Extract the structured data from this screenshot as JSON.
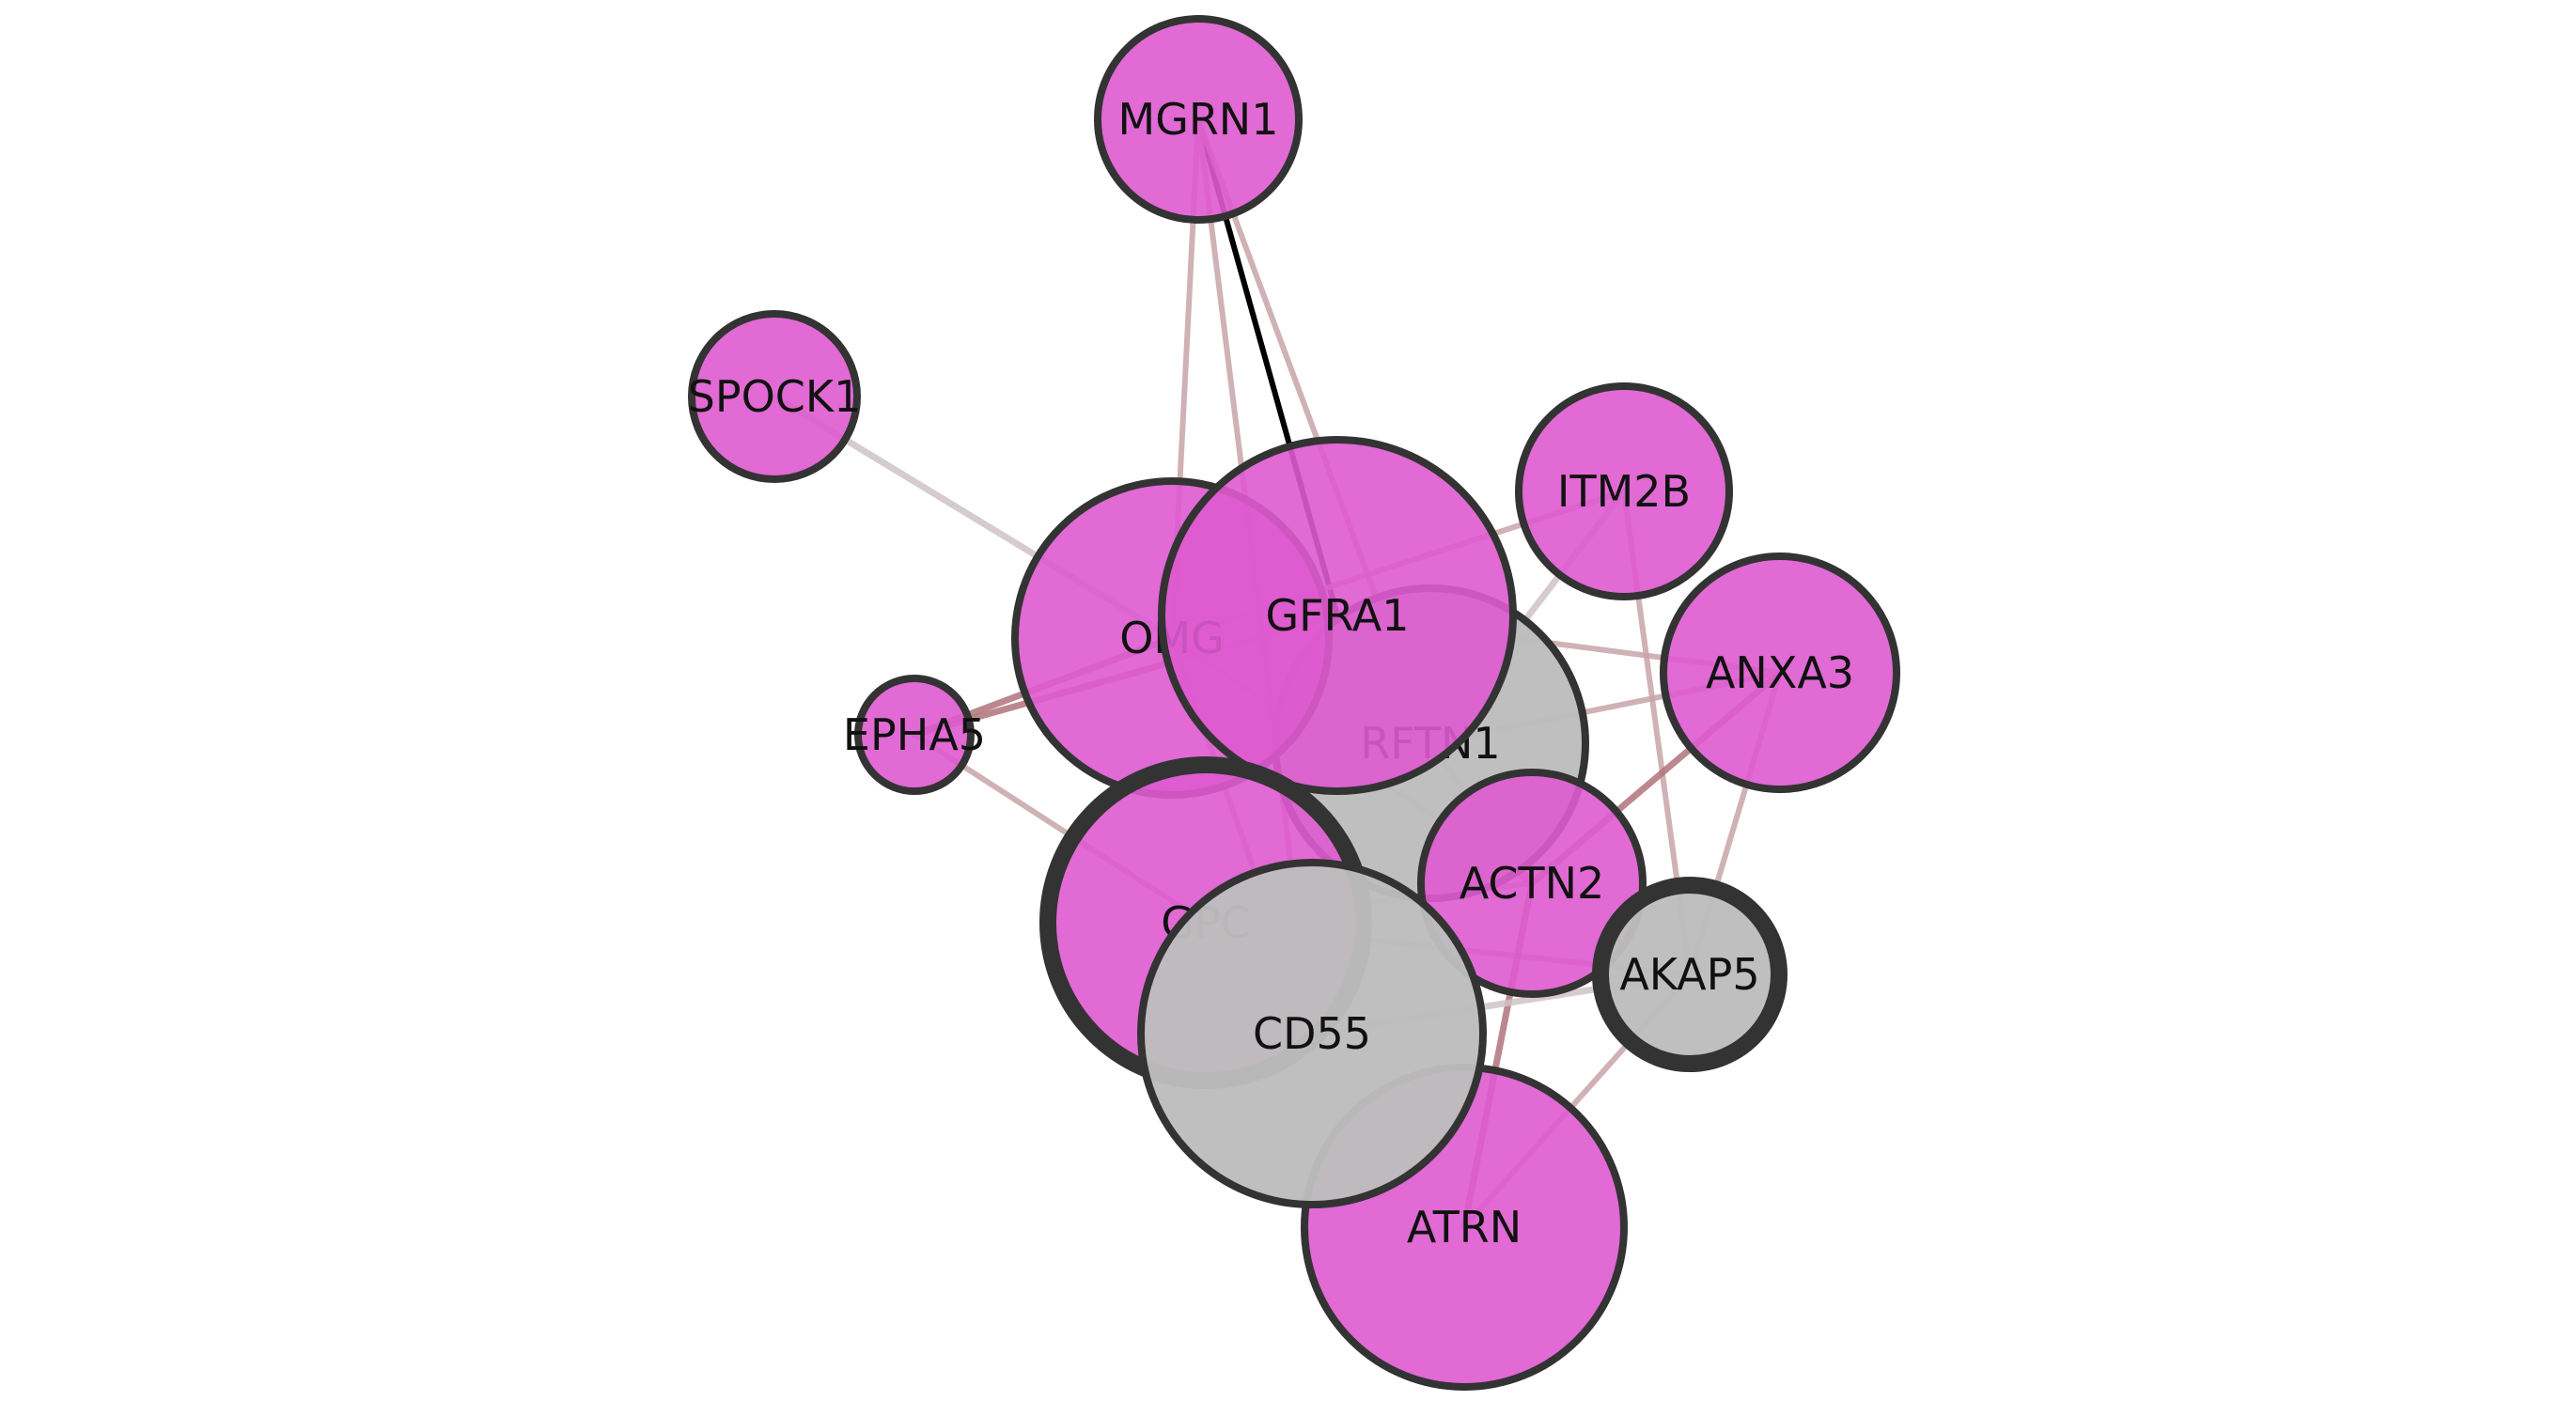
{
  "network": {
    "colors": {
      "magenta_node": "#de5acf",
      "grey_node": "#bdbdbd",
      "node_outline": "#333333",
      "edge_weak": "#cfc3c6",
      "edge_medium": "#c8a3a8",
      "edge_strong": "#b0737b",
      "edge_strongest": "#000000"
    },
    "nodes": [
      {
        "id": "MGRN1",
        "label": "MGRN1",
        "kind": "magenta"
      },
      {
        "id": "SPOCK1",
        "label": "SPOCK1",
        "kind": "magenta"
      },
      {
        "id": "EPHA5",
        "label": "EPHA5",
        "kind": "magenta"
      },
      {
        "id": "ITM2B",
        "label": "ITM2B",
        "kind": "magenta"
      },
      {
        "id": "ANXA3",
        "label": "ANXA3",
        "kind": "magenta"
      },
      {
        "id": "RFTN1",
        "label": "RFTN1",
        "kind": "grey"
      },
      {
        "id": "OMG",
        "label": "OMG",
        "kind": "magenta"
      },
      {
        "id": "GFRA1",
        "label": "GFRA1",
        "kind": "magenta"
      },
      {
        "id": "GPC",
        "label": "GPC",
        "kind": "magenta",
        "thick_outline": true
      },
      {
        "id": "ACTN2",
        "label": "ACTN2",
        "kind": "magenta"
      },
      {
        "id": "AKAP5",
        "label": "AKAP5",
        "kind": "grey",
        "thick_outline": true
      },
      {
        "id": "ATRN",
        "label": "ATRN",
        "kind": "magenta"
      },
      {
        "id": "CD55",
        "label": "CD55",
        "kind": "grey"
      }
    ],
    "edges": [
      {
        "source": "MGRN1",
        "target": "GFRA1",
        "strength": "strongest"
      },
      {
        "source": "MGRN1",
        "target": "OMG",
        "strength": "medium"
      },
      {
        "source": "MGRN1",
        "target": "RFTN1",
        "strength": "medium"
      },
      {
        "source": "MGRN1",
        "target": "CD55",
        "strength": "medium"
      },
      {
        "source": "SPOCK1",
        "target": "OMG",
        "strength": "weak"
      },
      {
        "source": "EPHA5",
        "target": "GFRA1",
        "strength": "strong"
      },
      {
        "source": "EPHA5",
        "target": "OMG",
        "strength": "strong"
      },
      {
        "source": "EPHA5",
        "target": "GPC",
        "strength": "medium"
      },
      {
        "source": "ITM2B",
        "target": "OMG",
        "strength": "medium"
      },
      {
        "source": "ITM2B",
        "target": "RFTN1",
        "strength": "weak"
      },
      {
        "source": "ITM2B",
        "target": "AKAP5",
        "strength": "medium"
      },
      {
        "source": "ANXA3",
        "target": "RFTN1",
        "strength": "medium"
      },
      {
        "source": "ANXA3",
        "target": "GFRA1",
        "strength": "medium"
      },
      {
        "source": "ANXA3",
        "target": "ACTN2",
        "strength": "strong"
      },
      {
        "source": "ANXA3",
        "target": "AKAP5",
        "strength": "medium"
      },
      {
        "source": "OMG",
        "target": "CD55",
        "strength": "medium"
      },
      {
        "source": "OMG",
        "target": "ACTN2",
        "strength": "medium"
      },
      {
        "source": "GFRA1",
        "target": "ACTN2",
        "strength": "medium"
      },
      {
        "source": "GPC",
        "target": "AKAP5",
        "strength": "medium"
      },
      {
        "source": "GPC",
        "target": "ACTN2",
        "strength": "medium"
      },
      {
        "source": "ACTN2",
        "target": "ATRN",
        "strength": "strong"
      },
      {
        "source": "AKAP5",
        "target": "ATRN",
        "strength": "medium"
      },
      {
        "source": "CD55",
        "target": "AKAP5",
        "strength": "weak"
      }
    ]
  }
}
